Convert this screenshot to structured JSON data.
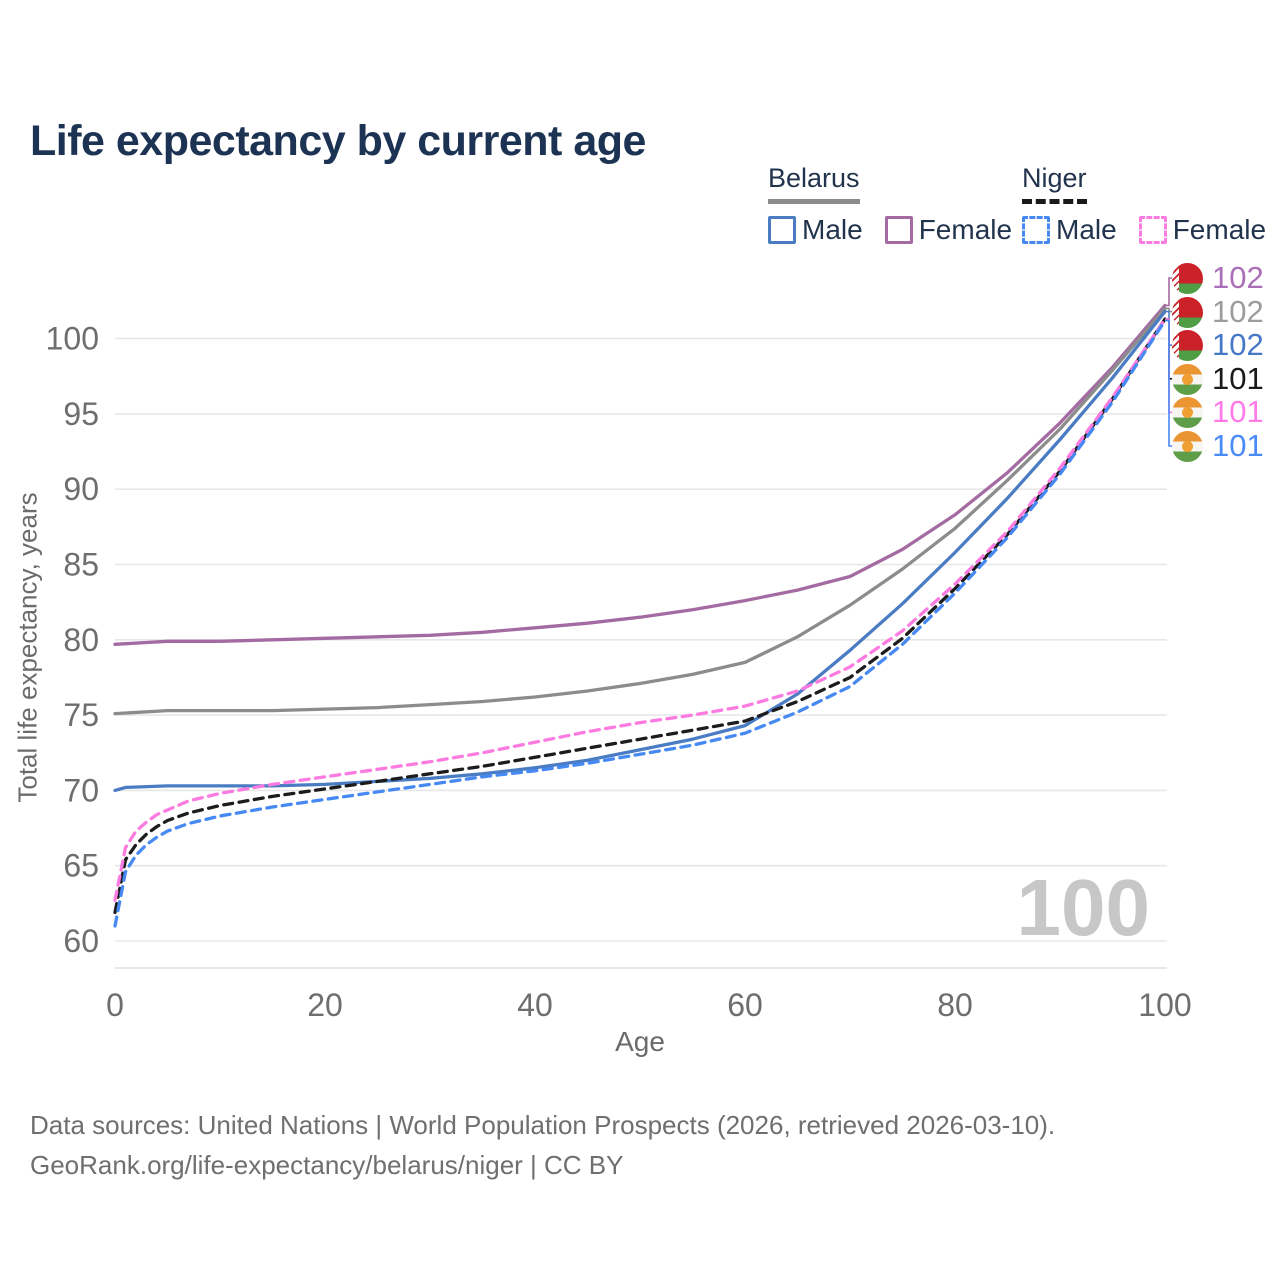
{
  "title": "Life expectancy by current age",
  "watermark": "100",
  "legend": {
    "groups": [
      {
        "name": "Belarus",
        "line_style": "solid",
        "line_color": "#8c8c8c",
        "items": [
          {
            "label": "Male",
            "color": "#4a7cc4",
            "dashed": false
          },
          {
            "label": "Female",
            "color": "#a46ba3",
            "dashed": false
          }
        ]
      },
      {
        "name": "Niger",
        "line_style": "dashed",
        "line_color": "#1a1a1a",
        "items": [
          {
            "label": "Male",
            "color": "#4689f2",
            "dashed": true
          },
          {
            "label": "Female",
            "color": "#fc7be0",
            "dashed": true
          }
        ]
      }
    ]
  },
  "footer": {
    "line1": "Data sources: United Nations | World Population Prospects (2026, retrieved 2026-03-10).",
    "line2": "GeoRank.org/life-expectancy/belarus/niger | CC BY"
  },
  "chart_data": {
    "type": "line",
    "title": "Life expectancy by current age",
    "xlabel": "Age",
    "ylabel": "Total life expectancy, years",
    "xlim": [
      0,
      100
    ],
    "ylim": [
      60,
      103
    ],
    "xticks": [
      0,
      20,
      40,
      60,
      80,
      100
    ],
    "yticks": [
      60,
      65,
      70,
      75,
      80,
      85,
      90,
      95,
      100
    ],
    "grid": "horizontal",
    "legend_position": "top-right",
    "series": [
      {
        "name": "Belarus Female",
        "country": "Belarus",
        "sex": "Female",
        "color": "#a46ba3",
        "dashed": false,
        "flag": "belarus",
        "end_label": "102",
        "label_color": "#ab6fb8",
        "points": [
          [
            0,
            79.7
          ],
          [
            5,
            79.9
          ],
          [
            10,
            79.9
          ],
          [
            15,
            80.0
          ],
          [
            20,
            80.1
          ],
          [
            25,
            80.2
          ],
          [
            30,
            80.3
          ],
          [
            35,
            80.5
          ],
          [
            40,
            80.8
          ],
          [
            45,
            81.1
          ],
          [
            50,
            81.5
          ],
          [
            55,
            82.0
          ],
          [
            60,
            82.6
          ],
          [
            65,
            83.3
          ],
          [
            70,
            84.2
          ],
          [
            75,
            86.0
          ],
          [
            80,
            88.3
          ],
          [
            85,
            91.1
          ],
          [
            90,
            94.4
          ],
          [
            95,
            98.1
          ],
          [
            100,
            102.2
          ]
        ]
      },
      {
        "name": "Belarus Both sexes",
        "country": "Belarus",
        "sex": "Both",
        "color": "#8c8c8c",
        "dashed": false,
        "flag": "belarus",
        "end_label": "102",
        "label_color": "#9c9c9c",
        "points": [
          [
            0,
            75.1
          ],
          [
            5,
            75.3
          ],
          [
            10,
            75.3
          ],
          [
            15,
            75.3
          ],
          [
            20,
            75.4
          ],
          [
            25,
            75.5
          ],
          [
            30,
            75.7
          ],
          [
            35,
            75.9
          ],
          [
            40,
            76.2
          ],
          [
            45,
            76.6
          ],
          [
            50,
            77.1
          ],
          [
            55,
            77.7
          ],
          [
            60,
            78.5
          ],
          [
            65,
            80.2
          ],
          [
            70,
            82.3
          ],
          [
            75,
            84.7
          ],
          [
            80,
            87.4
          ],
          [
            85,
            90.6
          ],
          [
            90,
            94.0
          ],
          [
            95,
            97.9
          ],
          [
            100,
            102.0
          ]
        ]
      },
      {
        "name": "Belarus Male",
        "country": "Belarus",
        "sex": "Male",
        "color": "#4a7cc4",
        "dashed": false,
        "flag": "belarus",
        "end_label": "102",
        "label_color": "#4678c8",
        "points": [
          [
            0,
            70.0
          ],
          [
            1,
            70.2
          ],
          [
            5,
            70.3
          ],
          [
            10,
            70.3
          ],
          [
            15,
            70.3
          ],
          [
            20,
            70.4
          ],
          [
            25,
            70.6
          ],
          [
            30,
            70.8
          ],
          [
            35,
            71.1
          ],
          [
            40,
            71.5
          ],
          [
            45,
            72.0
          ],
          [
            50,
            72.7
          ],
          [
            55,
            73.4
          ],
          [
            60,
            74.3
          ],
          [
            65,
            76.4
          ],
          [
            70,
            79.3
          ],
          [
            75,
            82.4
          ],
          [
            80,
            85.8
          ],
          [
            85,
            89.4
          ],
          [
            90,
            93.3
          ],
          [
            95,
            97.4
          ],
          [
            100,
            101.8
          ]
        ]
      },
      {
        "name": "Niger Both sexes",
        "country": "Niger",
        "sex": "Both",
        "color": "#1c1c1c",
        "dashed": true,
        "flag": "niger",
        "end_label": "101",
        "label_color": "#1a1a1a",
        "points": [
          [
            0,
            61.9
          ],
          [
            1,
            65.4
          ],
          [
            2,
            66.4
          ],
          [
            3,
            67.1
          ],
          [
            4,
            67.6
          ],
          [
            5,
            68.0
          ],
          [
            7,
            68.5
          ],
          [
            10,
            69.0
          ],
          [
            15,
            69.6
          ],
          [
            20,
            70.1
          ],
          [
            25,
            70.6
          ],
          [
            30,
            71.1
          ],
          [
            35,
            71.6
          ],
          [
            40,
            72.2
          ],
          [
            45,
            72.8
          ],
          [
            50,
            73.4
          ],
          [
            55,
            74.0
          ],
          [
            60,
            74.6
          ],
          [
            65,
            75.9
          ],
          [
            70,
            77.5
          ],
          [
            75,
            80.1
          ],
          [
            80,
            83.4
          ],
          [
            85,
            87.0
          ],
          [
            90,
            91.2
          ],
          [
            95,
            96.0
          ],
          [
            100,
            101.3
          ]
        ]
      },
      {
        "name": "Niger Female",
        "country": "Niger",
        "sex": "Female",
        "color": "#fc7be0",
        "dashed": true,
        "flag": "niger",
        "end_label": "101",
        "label_color": "#ff7ce8",
        "points": [
          [
            0,
            62.7
          ],
          [
            1,
            66.2
          ],
          [
            2,
            67.3
          ],
          [
            3,
            67.9
          ],
          [
            4,
            68.4
          ],
          [
            5,
            68.7
          ],
          [
            7,
            69.3
          ],
          [
            10,
            69.8
          ],
          [
            15,
            70.4
          ],
          [
            20,
            70.9
          ],
          [
            25,
            71.4
          ],
          [
            30,
            71.9
          ],
          [
            35,
            72.5
          ],
          [
            40,
            73.2
          ],
          [
            45,
            73.9
          ],
          [
            50,
            74.5
          ],
          [
            55,
            75.0
          ],
          [
            60,
            75.6
          ],
          [
            65,
            76.6
          ],
          [
            70,
            78.2
          ],
          [
            75,
            80.6
          ],
          [
            80,
            83.7
          ],
          [
            85,
            87.2
          ],
          [
            90,
            91.4
          ],
          [
            95,
            96.1
          ],
          [
            100,
            101.3
          ]
        ]
      },
      {
        "name": "Niger Male",
        "country": "Niger",
        "sex": "Male",
        "color": "#4689f2",
        "dashed": true,
        "flag": "niger",
        "end_label": "101",
        "label_color": "#4a8cf7",
        "points": [
          [
            0,
            61.0
          ],
          [
            1,
            64.6
          ],
          [
            2,
            65.7
          ],
          [
            3,
            66.4
          ],
          [
            4,
            66.9
          ],
          [
            5,
            67.3
          ],
          [
            7,
            67.8
          ],
          [
            10,
            68.3
          ],
          [
            15,
            68.9
          ],
          [
            20,
            69.4
          ],
          [
            25,
            69.9
          ],
          [
            30,
            70.4
          ],
          [
            35,
            70.9
          ],
          [
            40,
            71.3
          ],
          [
            45,
            71.8
          ],
          [
            50,
            72.4
          ],
          [
            55,
            73.0
          ],
          [
            60,
            73.8
          ],
          [
            65,
            75.2
          ],
          [
            70,
            76.9
          ],
          [
            75,
            79.7
          ],
          [
            80,
            83.1
          ],
          [
            85,
            86.8
          ],
          [
            90,
            91.0
          ],
          [
            95,
            95.8
          ],
          [
            100,
            101.2
          ]
        ]
      }
    ]
  }
}
